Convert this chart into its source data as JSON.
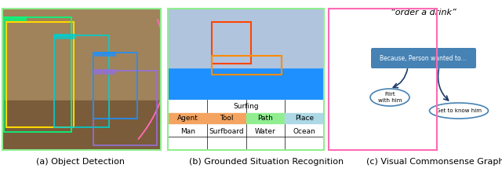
{
  "fig_width": 6.4,
  "fig_height": 2.19,
  "dpi": 100,
  "bg_color": "#ffffff",
  "title_a": "(a) Object Detection",
  "title_b": "(b) Grounded Situation Recognition",
  "title_c": "(c) Visual Commonsense Graph",
  "quote_text": "“order a drink”",
  "table_title": "Surfing",
  "table_headers": [
    "Agent",
    "Tool",
    "Path",
    "Place"
  ],
  "table_values": [
    "Man",
    "Surfboard",
    "Water",
    "Ocean"
  ],
  "header_colors": [
    "#f4a460",
    "#f4a460",
    "#90ee90",
    "#add8e6"
  ],
  "box_text": "Because, Person wanted to…",
  "box_color": "#4682b4",
  "box_text_color": "#ffffff",
  "node1_text": "Flirt\nwith him",
  "node2_text": "Get to know him",
  "node_edge_color": "#4682b4",
  "arrow_color": "#1a3a6b",
  "panel_a_border": "#90ee90",
  "panel_b_border": "#90ee90",
  "panel_c_border_left": "#ff69b4",
  "panel_c_border_right": "#ff69b4",
  "subfig_label_fontsize": 8,
  "table_fontsize": 6.5,
  "caption_fontsize": 8
}
